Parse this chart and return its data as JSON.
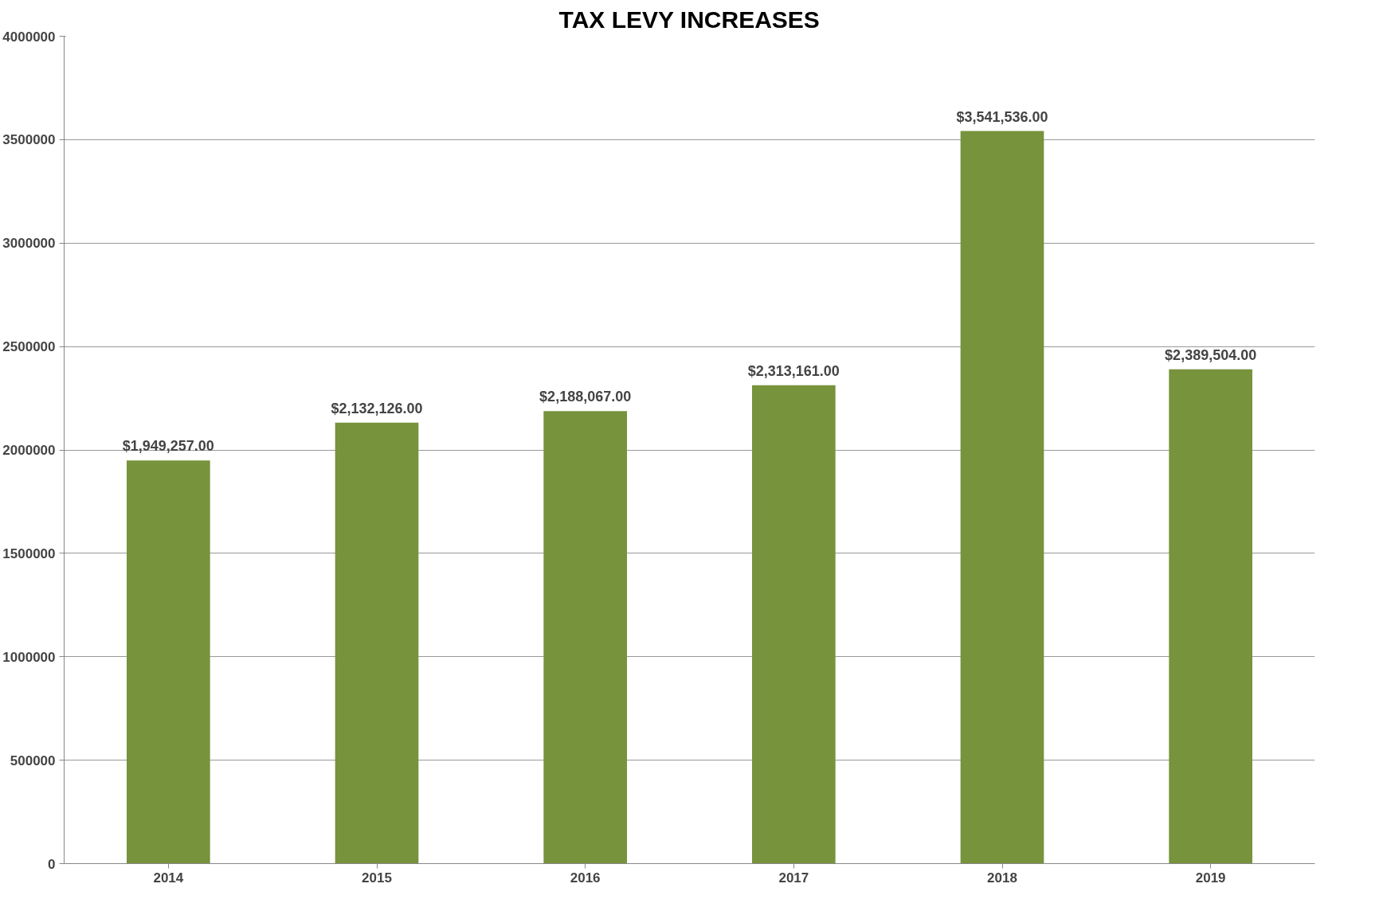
{
  "chart_data": {
    "type": "bar",
    "title": "TAX LEVY INCREASES",
    "categories": [
      "2014",
      "2015",
      "2016",
      "2017",
      "2018",
      "2019"
    ],
    "values": [
      1949257,
      2132126,
      2188067,
      2313161,
      3541536,
      2389504
    ],
    "value_labels": [
      "$1,949,257.00",
      "$2,132,126.00",
      "$2,188,067.00",
      "$2,313,161.00",
      "$3,541,536.00",
      "$2,389,504.00"
    ],
    "color": "#77933c",
    "ylim": [
      0,
      4000000
    ],
    "yticks": [
      0,
      500000,
      1000000,
      1500000,
      2000000,
      2500000,
      3000000,
      3500000,
      4000000
    ],
    "grid": "y"
  }
}
